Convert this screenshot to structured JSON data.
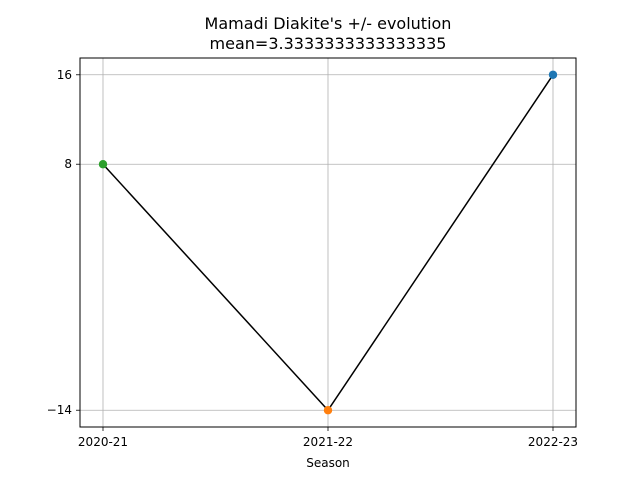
{
  "chart_data": {
    "type": "line",
    "title": "Mamadi Diakite's +/- evolution",
    "subtitle": "mean=3.3333333333333335",
    "xlabel": "Season",
    "ylabel": "",
    "categories": [
      "2020-21",
      "2021-22",
      "2022-23"
    ],
    "values": [
      8,
      -14,
      16
    ],
    "point_colors": [
      "#2ca02c",
      "#ff7f0e",
      "#1f77b4"
    ],
    "line_color": "#000000",
    "yticks": [
      -14,
      8,
      16
    ],
    "ylim": [
      -15.5,
      17.5
    ],
    "grid": true,
    "legend": "none"
  }
}
